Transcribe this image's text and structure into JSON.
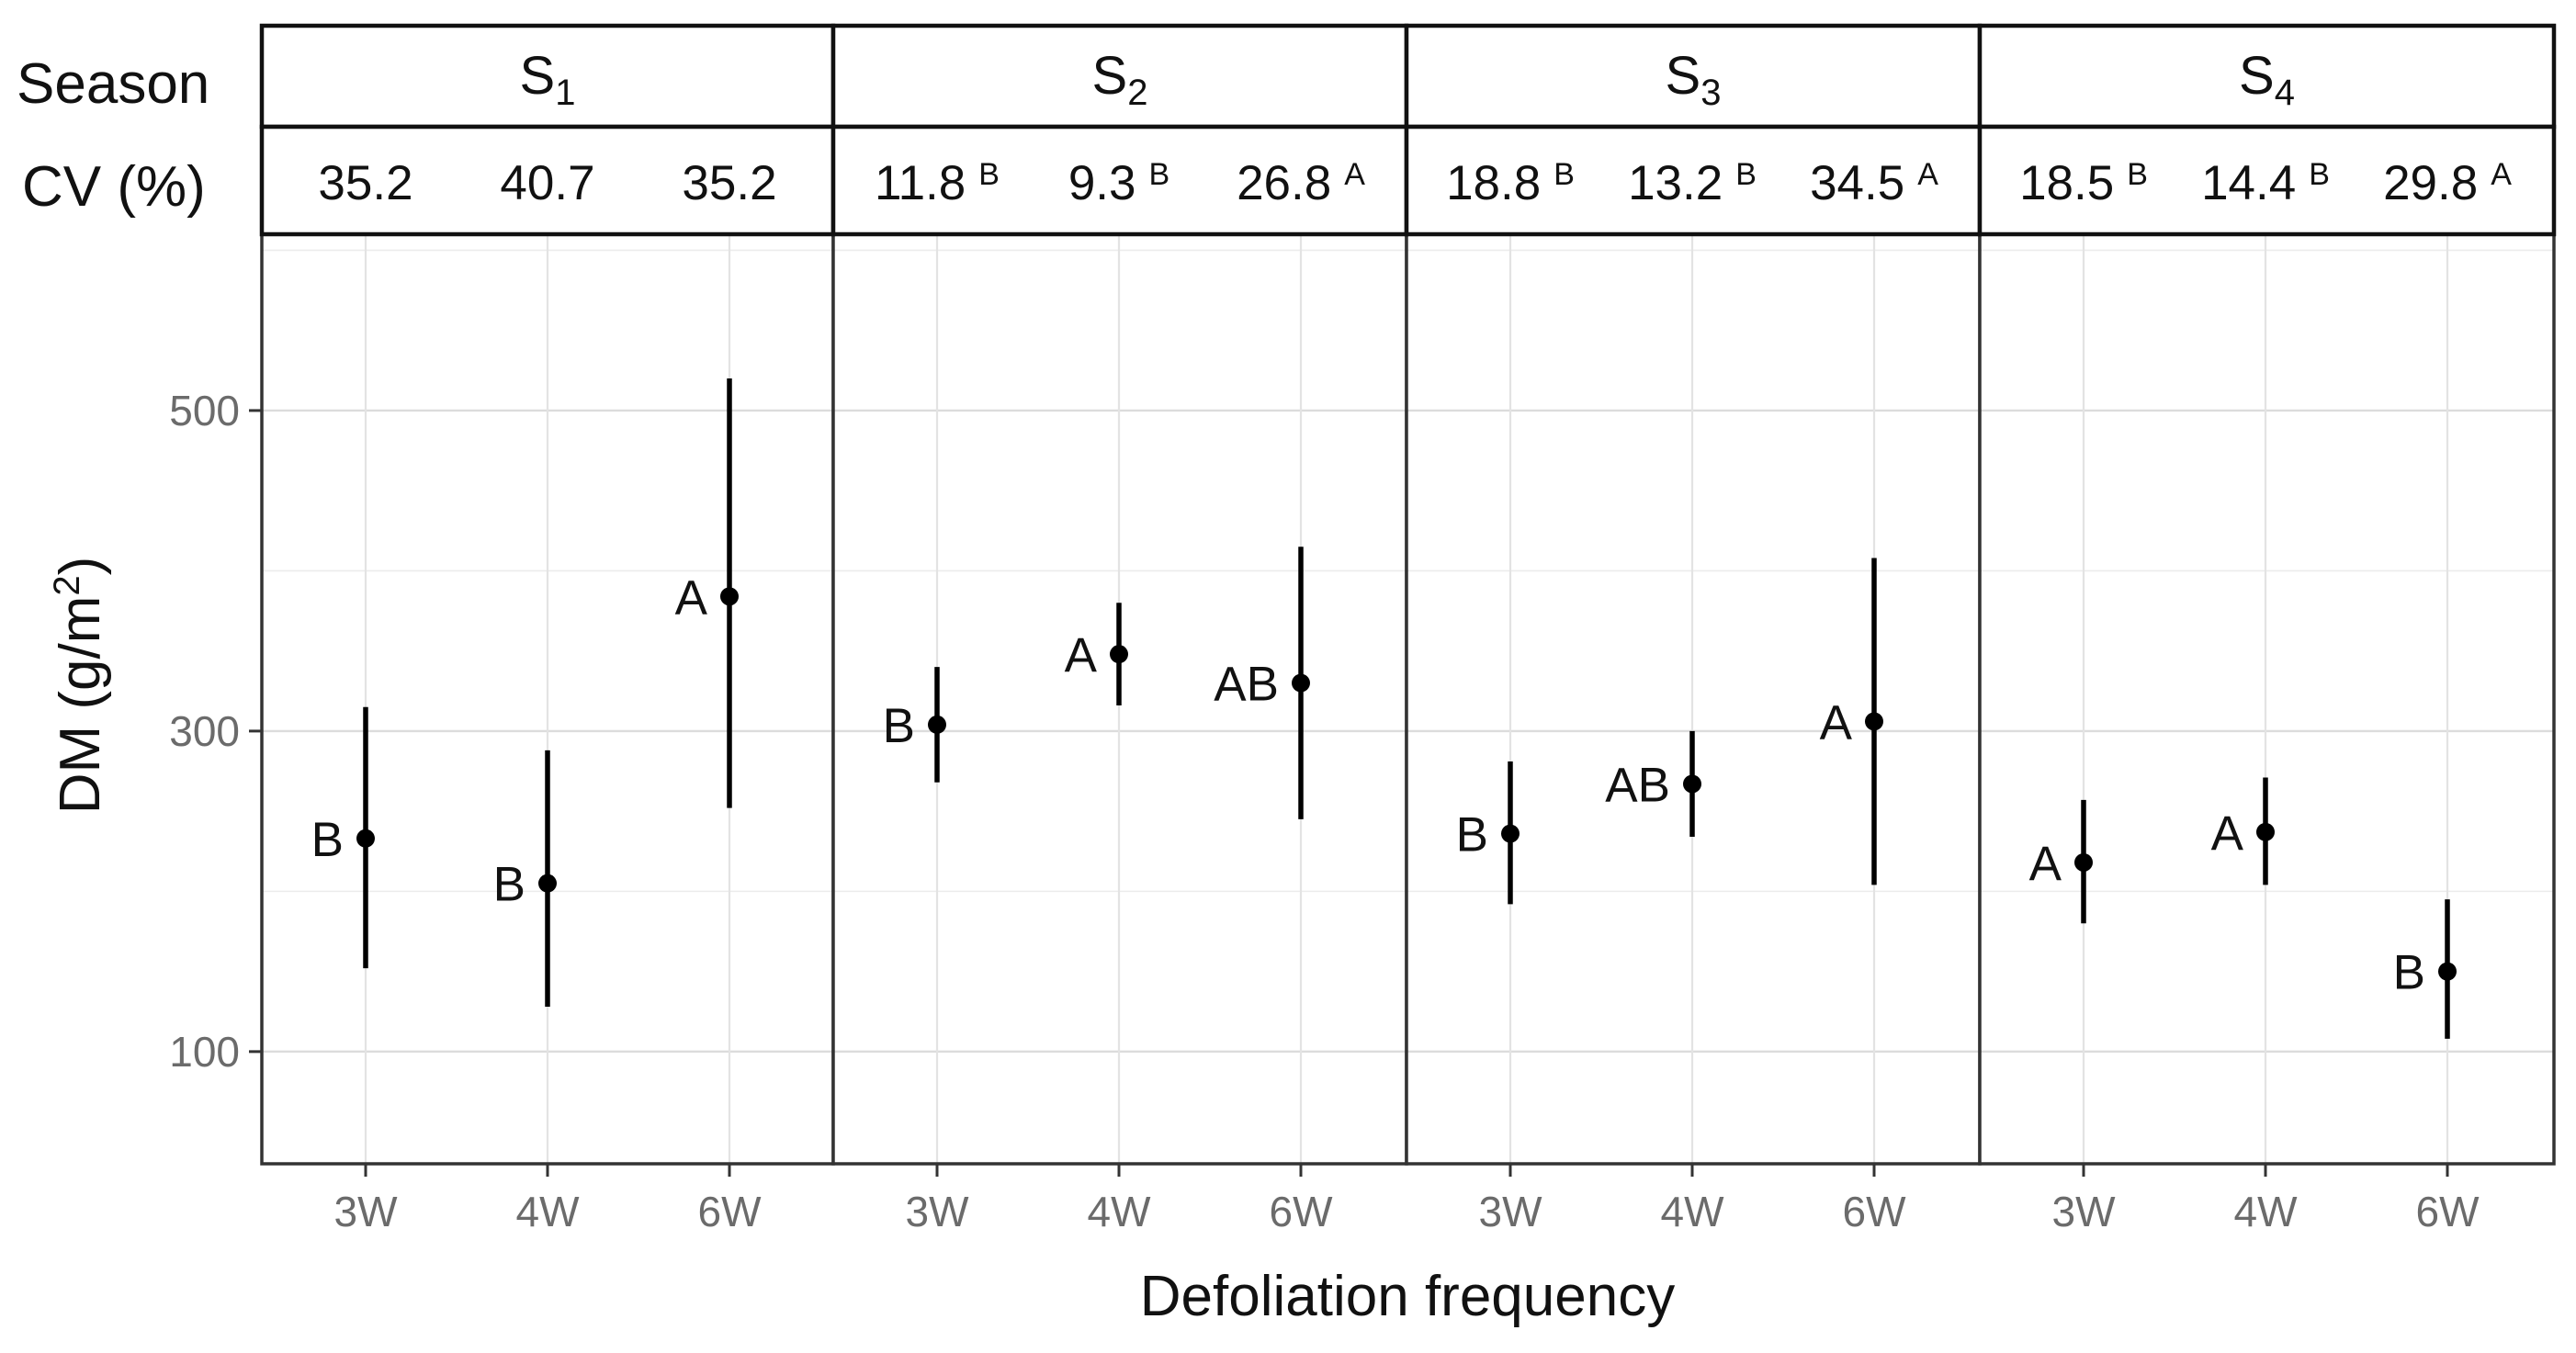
{
  "chart_data": {
    "type": "scatter",
    "xlabel": "Defoliation frequency",
    "ylabel": "DM (g/m",
    "ylabel_sup": "2",
    "ylabel_close": ")",
    "row_labels": {
      "season": "Season",
      "cv": "CV (%)"
    },
    "y_ticks": [
      100,
      300,
      500
    ],
    "ylim": [
      30,
      610
    ],
    "x_categories": [
      "3W",
      "4W",
      "6W"
    ],
    "panels": [
      {
        "season_main": "S",
        "season_sub": "1",
        "cv": [
          {
            "value": "35.2",
            "letter": ""
          },
          {
            "value": "40.7",
            "letter": ""
          },
          {
            "value": "35.2",
            "letter": ""
          }
        ],
        "points": [
          {
            "x": "3W",
            "y": 233,
            "low": 152,
            "high": 315,
            "label": "B"
          },
          {
            "x": "4W",
            "y": 205,
            "low": 128,
            "high": 288,
            "label": "B"
          },
          {
            "x": "6W",
            "y": 384,
            "low": 252,
            "high": 520,
            "label": "A"
          }
        ]
      },
      {
        "season_main": "S",
        "season_sub": "2",
        "cv": [
          {
            "value": "11.8",
            "letter": "B"
          },
          {
            "value": "9.3",
            "letter": "B"
          },
          {
            "value": "26.8",
            "letter": "A"
          }
        ],
        "points": [
          {
            "x": "3W",
            "y": 304,
            "low": 268,
            "high": 340,
            "label": "B"
          },
          {
            "x": "4W",
            "y": 348,
            "low": 316,
            "high": 380,
            "label": "A"
          },
          {
            "x": "6W",
            "y": 330,
            "low": 245,
            "high": 415,
            "label": "AB"
          }
        ]
      },
      {
        "season_main": "S",
        "season_sub": "3",
        "cv": [
          {
            "value": "18.8",
            "letter": "B"
          },
          {
            "value": "13.2",
            "letter": "B"
          },
          {
            "value": "34.5",
            "letter": "A"
          }
        ],
        "points": [
          {
            "x": "3W",
            "y": 236,
            "low": 192,
            "high": 281,
            "label": "B"
          },
          {
            "x": "4W",
            "y": 267,
            "low": 234,
            "high": 300,
            "label": "AB"
          },
          {
            "x": "6W",
            "y": 306,
            "low": 204,
            "high": 408,
            "label": "A"
          }
        ]
      },
      {
        "season_main": "S",
        "season_sub": "4",
        "cv": [
          {
            "value": "18.5",
            "letter": "B"
          },
          {
            "value": "14.4",
            "letter": "B"
          },
          {
            "value": "29.8",
            "letter": "A"
          }
        ],
        "points": [
          {
            "x": "3W",
            "y": 218,
            "low": 180,
            "high": 257,
            "label": "A"
          },
          {
            "x": "4W",
            "y": 237,
            "low": 204,
            "high": 271,
            "label": "A"
          },
          {
            "x": "6W",
            "y": 150,
            "low": 108,
            "high": 195,
            "label": "B"
          }
        ]
      }
    ]
  }
}
